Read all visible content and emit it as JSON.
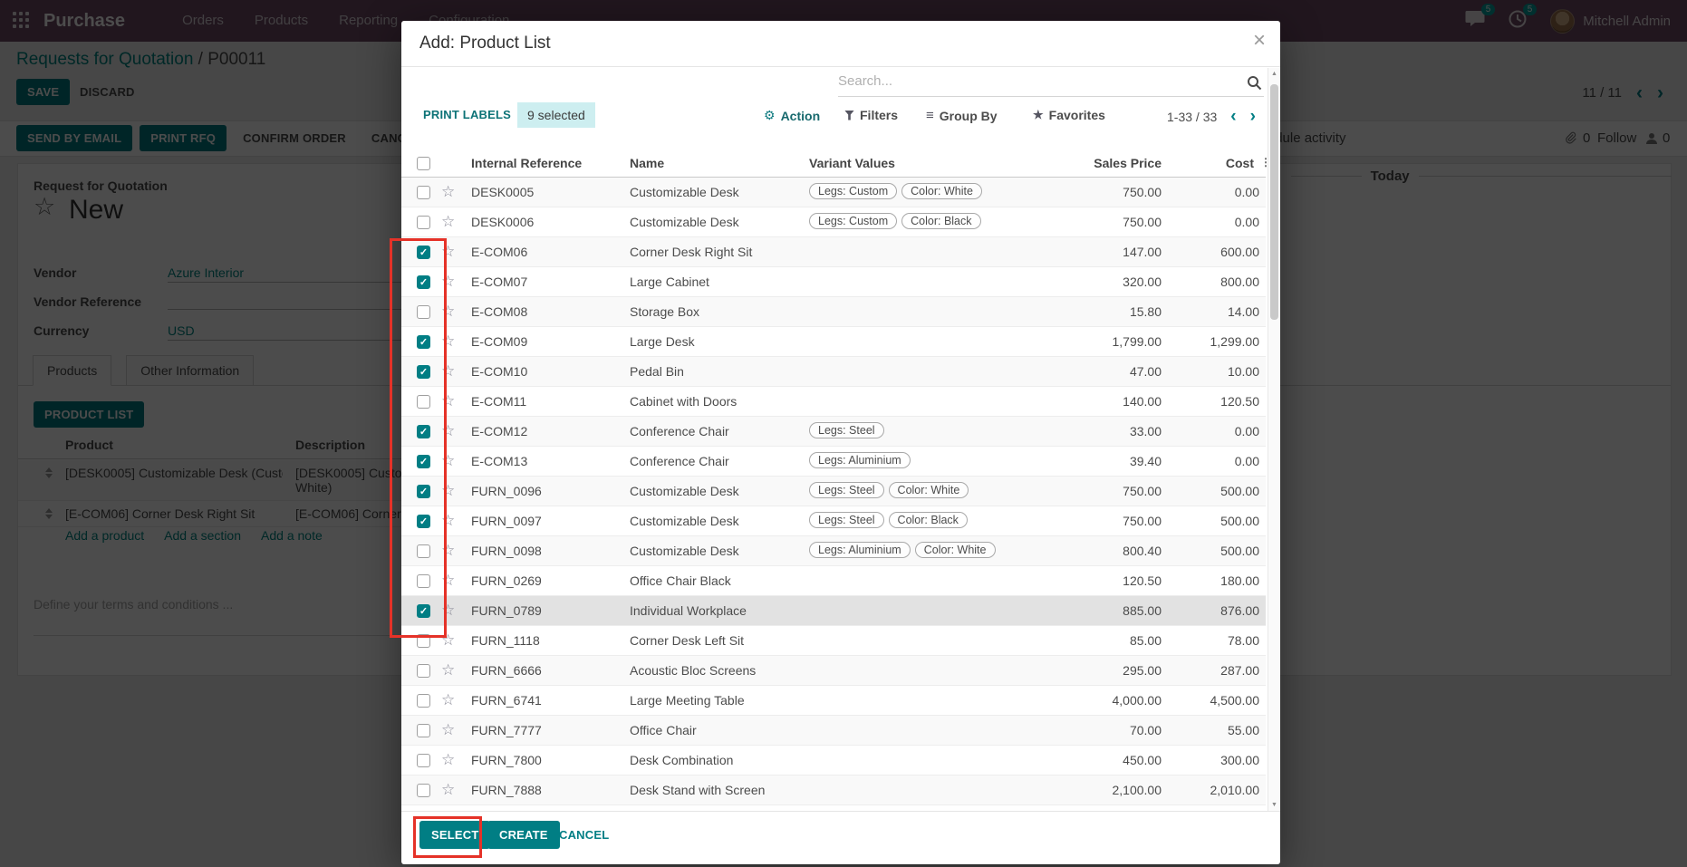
{
  "topbar": {
    "app_name": "Purchase",
    "menus": [
      "Orders",
      "Products",
      "Reporting",
      "Configuration"
    ],
    "messages_badge": "5",
    "activities_badge": "5",
    "user_name": "Mitchell Admin"
  },
  "page": {
    "breadcrumb": {
      "link": "Requests for Quotation",
      "separator": " / ",
      "current": "P00011"
    },
    "save_label": "SAVE",
    "discard_label": "DISCARD",
    "statusbar_buttons": [
      {
        "label": "SEND BY EMAIL",
        "style": "filled"
      },
      {
        "label": "PRINT RFQ",
        "style": "filled"
      },
      {
        "label": "CONFIRM ORDER",
        "style": "ghost"
      },
      {
        "label": "CANCEL",
        "style": "ghost"
      }
    ],
    "pager": "11 / 11",
    "sheet": {
      "type_label": "Request for Quotation",
      "name": "New",
      "fields": [
        {
          "label": "Vendor",
          "value": "Azure Interior"
        },
        {
          "label": "Vendor Reference",
          "value": ""
        },
        {
          "label": "Currency",
          "value": "USD"
        }
      ],
      "tabs": [
        {
          "label": "Products",
          "active": true
        },
        {
          "label": "Other Information",
          "active": false
        }
      ],
      "product_list_button": "PRODUCT LIST",
      "table": {
        "headers": [
          "Product",
          "Description"
        ],
        "rows": [
          {
            "product": "[DESK0005] Customizable Desk (Custo...",
            "description": "[DESK0005] Customizable Desk (Custom, White)"
          },
          {
            "product": "[E-COM06] Corner Desk Right Sit",
            "description": "[E-COM06] Corner Desk Right Sit"
          }
        ],
        "links": [
          "Add a product",
          "Add a section",
          "Add a note"
        ]
      },
      "terms_placeholder": "Define your terms and conditions ..."
    },
    "chatter": {
      "schedule_activity": "Schedule activity",
      "attachment_count": "0",
      "follow_label": "Follow",
      "followers_count": "0",
      "today_label": "Today"
    }
  },
  "modal": {
    "title": "Add: Product List",
    "close_label": "×",
    "search_placeholder": "Search...",
    "print_labels_label": "PRINT LABELS",
    "selected_badge": "9 selected",
    "action_label": "Action",
    "filters_label": "Filters",
    "groupby_label": "Group By",
    "favorites_label": "Favorites",
    "pager": "1-33 / 33",
    "columns": [
      "Internal Reference",
      "Name",
      "Variant Values",
      "Sales Price",
      "Cost"
    ],
    "rows": [
      {
        "ref": "DESK0005",
        "name": "Customizable Desk",
        "variants": [
          "Legs: Custom",
          "Color: White"
        ],
        "sales": "750.00",
        "cost": "0.00",
        "checked": false,
        "highlight": false
      },
      {
        "ref": "DESK0006",
        "name": "Customizable Desk",
        "variants": [
          "Legs: Custom",
          "Color: Black"
        ],
        "sales": "750.00",
        "cost": "0.00",
        "checked": false,
        "highlight": false
      },
      {
        "ref": "E-COM06",
        "name": "Corner Desk Right Sit",
        "variants": [],
        "sales": "147.00",
        "cost": "600.00",
        "checked": true,
        "highlight": false
      },
      {
        "ref": "E-COM07",
        "name": "Large Cabinet",
        "variants": [],
        "sales": "320.00",
        "cost": "800.00",
        "checked": true,
        "highlight": false
      },
      {
        "ref": "E-COM08",
        "name": "Storage Box",
        "variants": [],
        "sales": "15.80",
        "cost": "14.00",
        "checked": false,
        "highlight": false
      },
      {
        "ref": "E-COM09",
        "name": "Large Desk",
        "variants": [],
        "sales": "1,799.00",
        "cost": "1,299.00",
        "checked": true,
        "highlight": false
      },
      {
        "ref": "E-COM10",
        "name": "Pedal Bin",
        "variants": [],
        "sales": "47.00",
        "cost": "10.00",
        "checked": true,
        "highlight": false
      },
      {
        "ref": "E-COM11",
        "name": "Cabinet with Doors",
        "variants": [],
        "sales": "140.00",
        "cost": "120.50",
        "checked": false,
        "highlight": false
      },
      {
        "ref": "E-COM12",
        "name": "Conference Chair",
        "variants": [
          "Legs: Steel"
        ],
        "sales": "33.00",
        "cost": "0.00",
        "checked": true,
        "highlight": false
      },
      {
        "ref": "E-COM13",
        "name": "Conference Chair",
        "variants": [
          "Legs: Aluminium"
        ],
        "sales": "39.40",
        "cost": "0.00",
        "checked": true,
        "highlight": false
      },
      {
        "ref": "FURN_0096",
        "name": "Customizable Desk",
        "variants": [
          "Legs: Steel",
          "Color: White"
        ],
        "sales": "750.00",
        "cost": "500.00",
        "checked": true,
        "highlight": false
      },
      {
        "ref": "FURN_0097",
        "name": "Customizable Desk",
        "variants": [
          "Legs: Steel",
          "Color: Black"
        ],
        "sales": "750.00",
        "cost": "500.00",
        "checked": true,
        "highlight": false
      },
      {
        "ref": "FURN_0098",
        "name": "Customizable Desk",
        "variants": [
          "Legs: Aluminium",
          "Color: White"
        ],
        "sales": "800.40",
        "cost": "500.00",
        "checked": false,
        "highlight": false
      },
      {
        "ref": "FURN_0269",
        "name": "Office Chair Black",
        "variants": [],
        "sales": "120.50",
        "cost": "180.00",
        "checked": false,
        "highlight": false
      },
      {
        "ref": "FURN_0789",
        "name": "Individual Workplace",
        "variants": [],
        "sales": "885.00",
        "cost": "876.00",
        "checked": true,
        "highlight": true
      },
      {
        "ref": "FURN_1118",
        "name": "Corner Desk Left Sit",
        "variants": [],
        "sales": "85.00",
        "cost": "78.00",
        "checked": false,
        "highlight": false
      },
      {
        "ref": "FURN_6666",
        "name": "Acoustic Bloc Screens",
        "variants": [],
        "sales": "295.00",
        "cost": "287.00",
        "checked": false,
        "highlight": false
      },
      {
        "ref": "FURN_6741",
        "name": "Large Meeting Table",
        "variants": [],
        "sales": "4,000.00",
        "cost": "4,500.00",
        "checked": false,
        "highlight": false
      },
      {
        "ref": "FURN_7777",
        "name": "Office Chair",
        "variants": [],
        "sales": "70.00",
        "cost": "55.00",
        "checked": false,
        "highlight": false
      },
      {
        "ref": "FURN_7800",
        "name": "Desk Combination",
        "variants": [],
        "sales": "450.00",
        "cost": "300.00",
        "checked": false,
        "highlight": false
      },
      {
        "ref": "FURN_7888",
        "name": "Desk Stand with Screen",
        "variants": [],
        "sales": "2,100.00",
        "cost": "2,010.00",
        "checked": false,
        "highlight": false
      }
    ],
    "footer": {
      "select": "SELECT",
      "create": "CREATE",
      "cancel": "CANCEL"
    }
  },
  "colors": {
    "topbar": "#714B67",
    "accent": "#017e84",
    "link": "#008784",
    "selected_badge_bg": "#cdeef0",
    "annotation": "#e53228"
  }
}
